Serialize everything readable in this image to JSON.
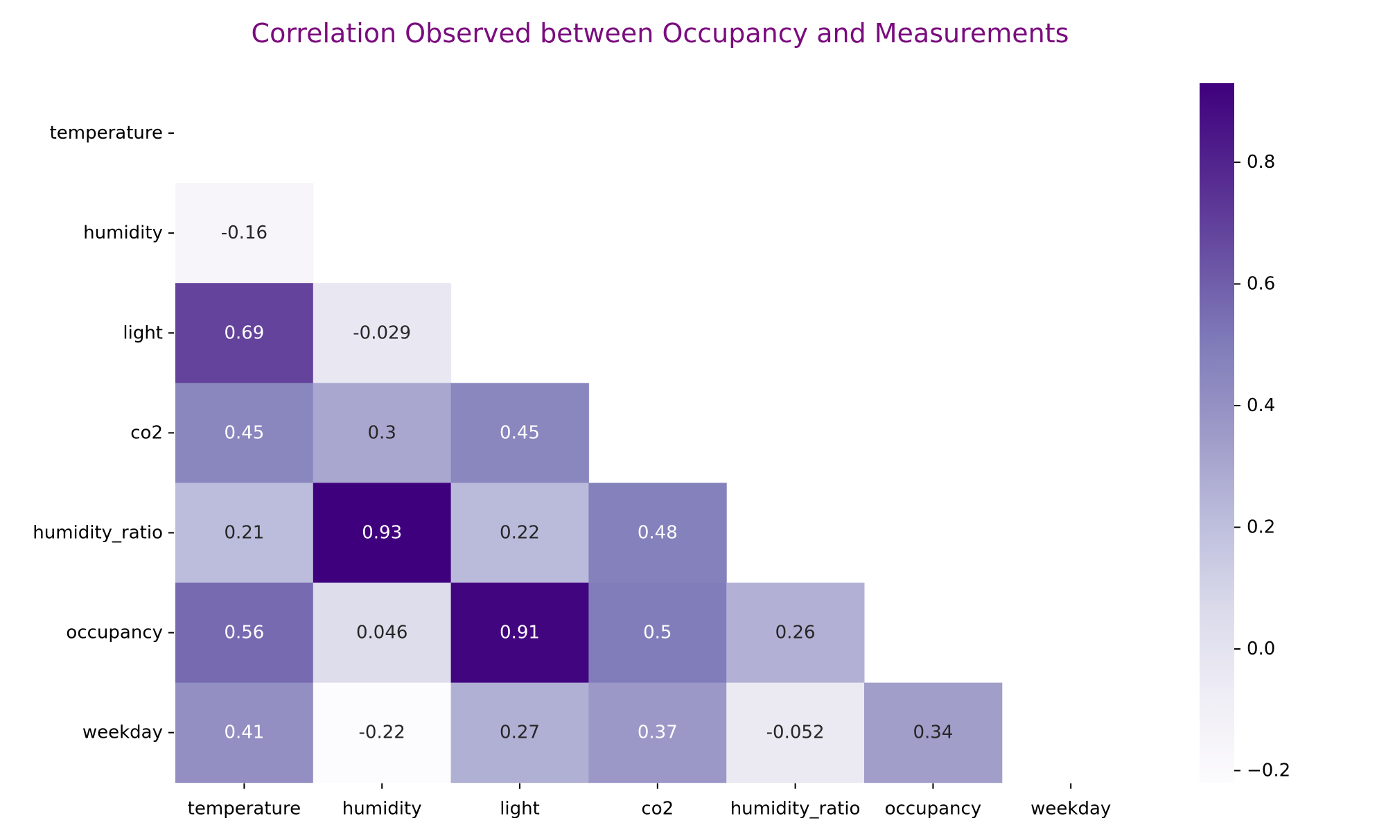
{
  "chart_data": {
    "type": "heatmap",
    "title": "Correlation Observed between Occupancy and Measurements",
    "title_color": "#7a0c7e",
    "colormap": "Purples",
    "mask": "upper triangle including diagonal",
    "row_labels": [
      "temperature",
      "humidity",
      "light",
      "co2",
      "humidity_ratio",
      "occupancy",
      "weekday"
    ],
    "col_labels": [
      "temperature",
      "humidity",
      "light",
      "co2",
      "humidity_ratio",
      "occupancy",
      "weekday"
    ],
    "values": [
      [
        null,
        null,
        null,
        null,
        null,
        null,
        null
      ],
      [
        -0.16,
        null,
        null,
        null,
        null,
        null,
        null
      ],
      [
        0.69,
        -0.029,
        null,
        null,
        null,
        null,
        null
      ],
      [
        0.45,
        0.3,
        0.45,
        null,
        null,
        null,
        null
      ],
      [
        0.21,
        0.93,
        0.22,
        0.48,
        null,
        null,
        null
      ],
      [
        0.56,
        0.046,
        0.91,
        0.5,
        0.26,
        null,
        null
      ],
      [
        0.41,
        -0.22,
        0.27,
        0.37,
        -0.052,
        0.34,
        null
      ]
    ],
    "value_labels": [
      [
        null,
        null,
        null,
        null,
        null,
        null,
        null
      ],
      [
        "-0.16",
        null,
        null,
        null,
        null,
        null,
        null
      ],
      [
        "0.69",
        "-0.029",
        null,
        null,
        null,
        null,
        null
      ],
      [
        "0.45",
        "0.3",
        "0.45",
        null,
        null,
        null,
        null
      ],
      [
        "0.21",
        "0.93",
        "0.22",
        "0.48",
        null,
        null,
        null
      ],
      [
        "0.56",
        "0.046",
        "0.91",
        "0.5",
        "0.26",
        null,
        null
      ],
      [
        "0.41",
        "-0.22",
        "0.27",
        "0.37",
        "-0.052",
        "0.34",
        null
      ]
    ],
    "colorbar": {
      "vmin": -0.22,
      "vmax": 0.93,
      "ticks": [
        -0.2,
        0.0,
        0.2,
        0.4,
        0.6,
        0.8
      ],
      "tick_labels": [
        "−0.2",
        "0.0",
        "0.2",
        "0.4",
        "0.6",
        "0.8"
      ]
    }
  }
}
